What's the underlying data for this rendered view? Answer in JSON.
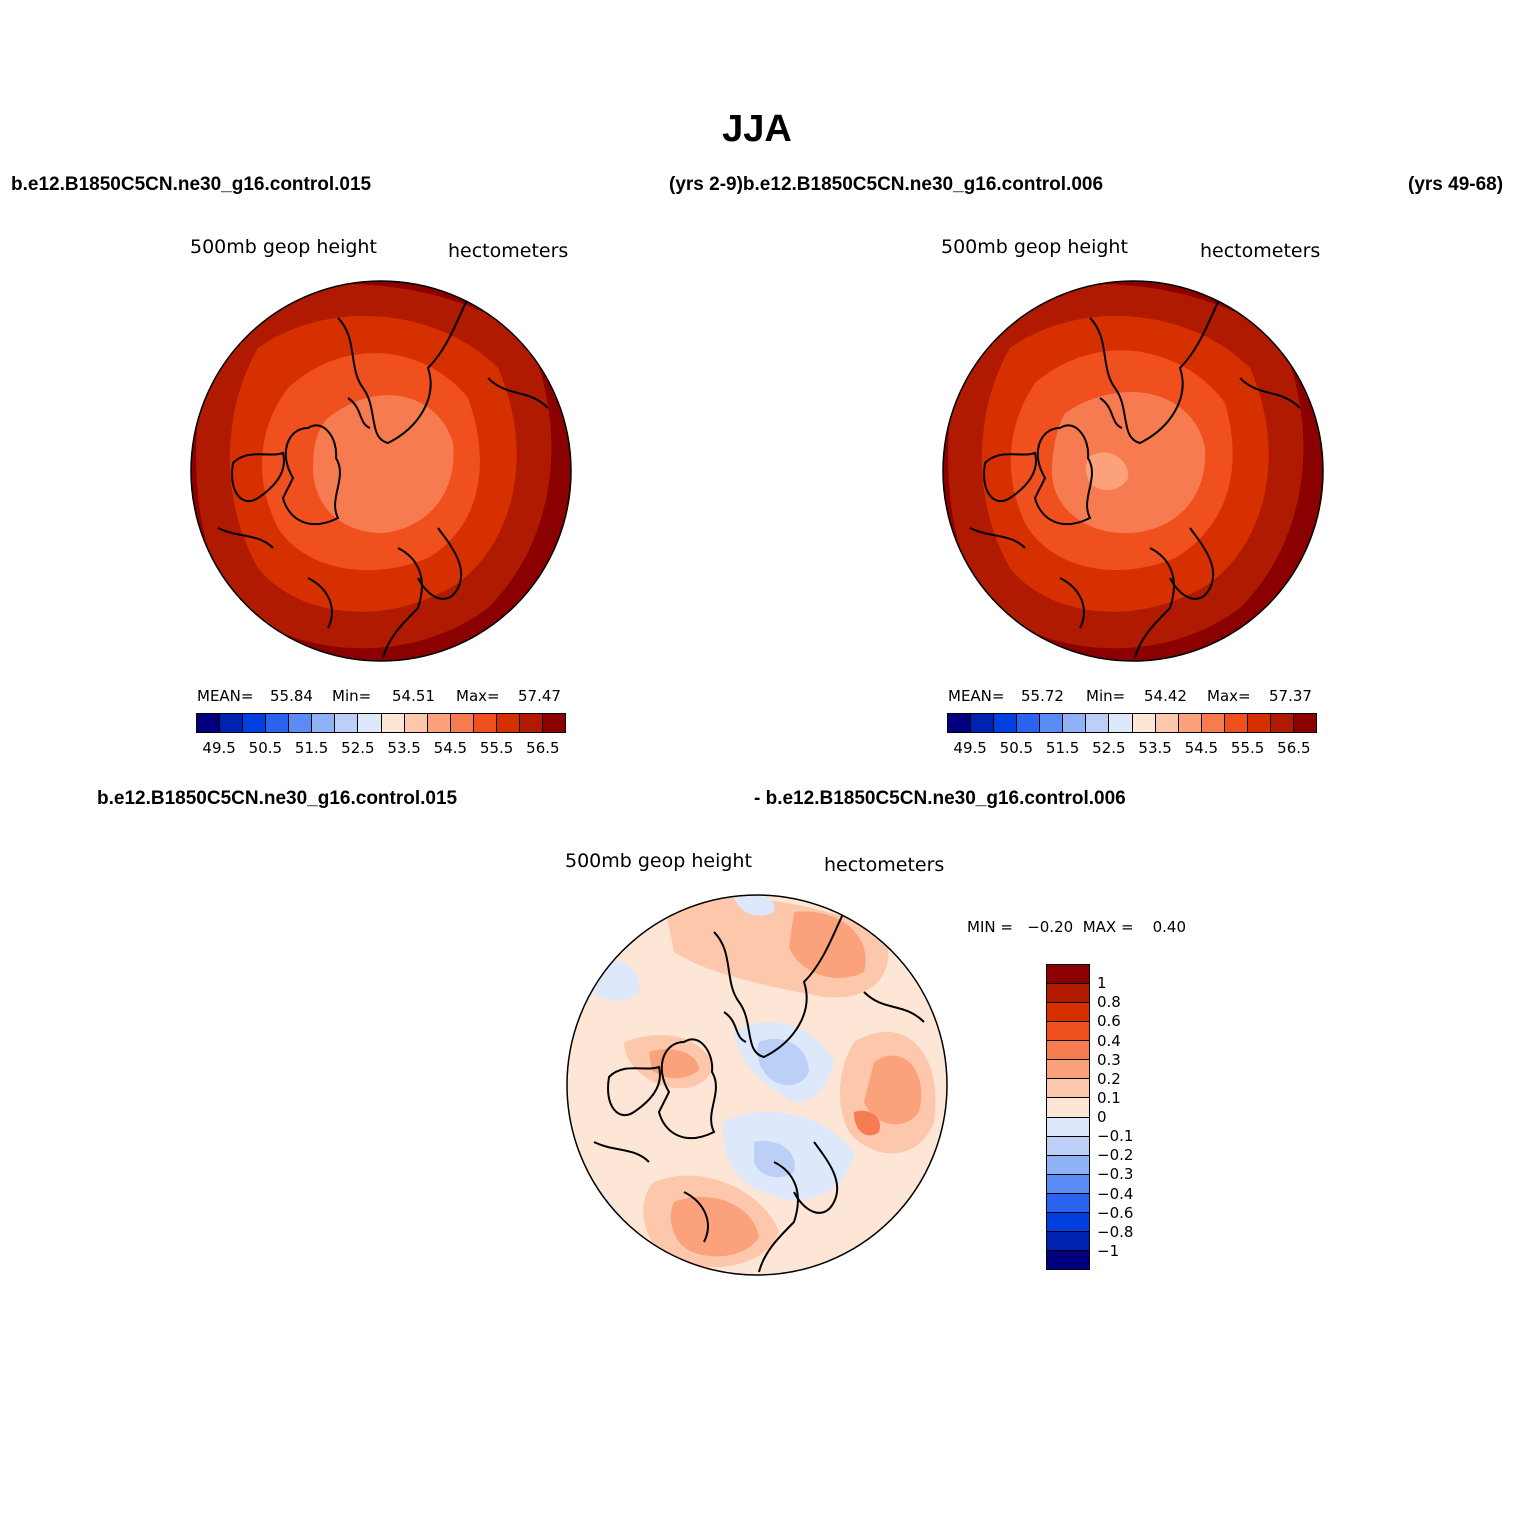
{
  "title": "JJA",
  "header": {
    "case_a": "b.e12.B1850C5CN.ne30_g16.control.015",
    "case_a_years_case_b": "(yrs 2-9)b.e12.B1850C5CN.ne30_g16.control.006",
    "case_b_years": "(yrs 49-68)",
    "diff_case_a": "b.e12.B1850C5CN.ne30_g16.control.015",
    "diff_case_b": "- b.e12.B1850C5CN.ne30_g16.control.006"
  },
  "panels": [
    {
      "variable": "500mb geop height",
      "units": "hectometers",
      "mean_label": "MEAN=",
      "mean": "55.84",
      "min_label": "Min=",
      "min": "54.51",
      "max_label": "Max=",
      "max": "57.47"
    },
    {
      "variable": "500mb geop height",
      "units": "hectometers",
      "mean_label": "MEAN=",
      "mean": "55.72",
      "min_label": "Min=",
      "min": "54.42",
      "max_label": "Max=",
      "max": "57.37"
    }
  ],
  "diff_panel": {
    "variable": "500mb geop height",
    "units": "hectometers",
    "minmax_text": "MIN =   −0.20  MAX =    0.40"
  },
  "colorbar_abs": {
    "colors": [
      "#00007f",
      "#0022b0",
      "#0040e0",
      "#2a63f0",
      "#5a8cf5",
      "#8fb2f7",
      "#bcd0f7",
      "#dde9fa",
      "#fde6d6",
      "#fcc7aa",
      "#fba27c",
      "#f77b50",
      "#f0501e",
      "#d63000",
      "#b01a00",
      "#8b0000"
    ],
    "tick_labels": [
      "49.5",
      "50.5",
      "51.5",
      "52.5",
      "53.5",
      "54.5",
      "55.5",
      "56.5"
    ]
  },
  "colorbar_diff": {
    "colors": [
      "#8b0000",
      "#b01a00",
      "#d63000",
      "#f0501e",
      "#f77b50",
      "#fba27c",
      "#fcc7aa",
      "#fde6d6",
      "#dde9fa",
      "#bcd0f7",
      "#8fb2f7",
      "#5a8cf5",
      "#2a63f0",
      "#0040e0",
      "#0022b0",
      "#00007f"
    ],
    "tick_labels": [
      "1",
      "0.8",
      "0.6",
      "0.4",
      "0.3",
      "0.2",
      "0.1",
      "0",
      "−0.1",
      "−0.2",
      "−0.3",
      "−0.4",
      "−0.6",
      "−0.8",
      "−1"
    ]
  }
}
